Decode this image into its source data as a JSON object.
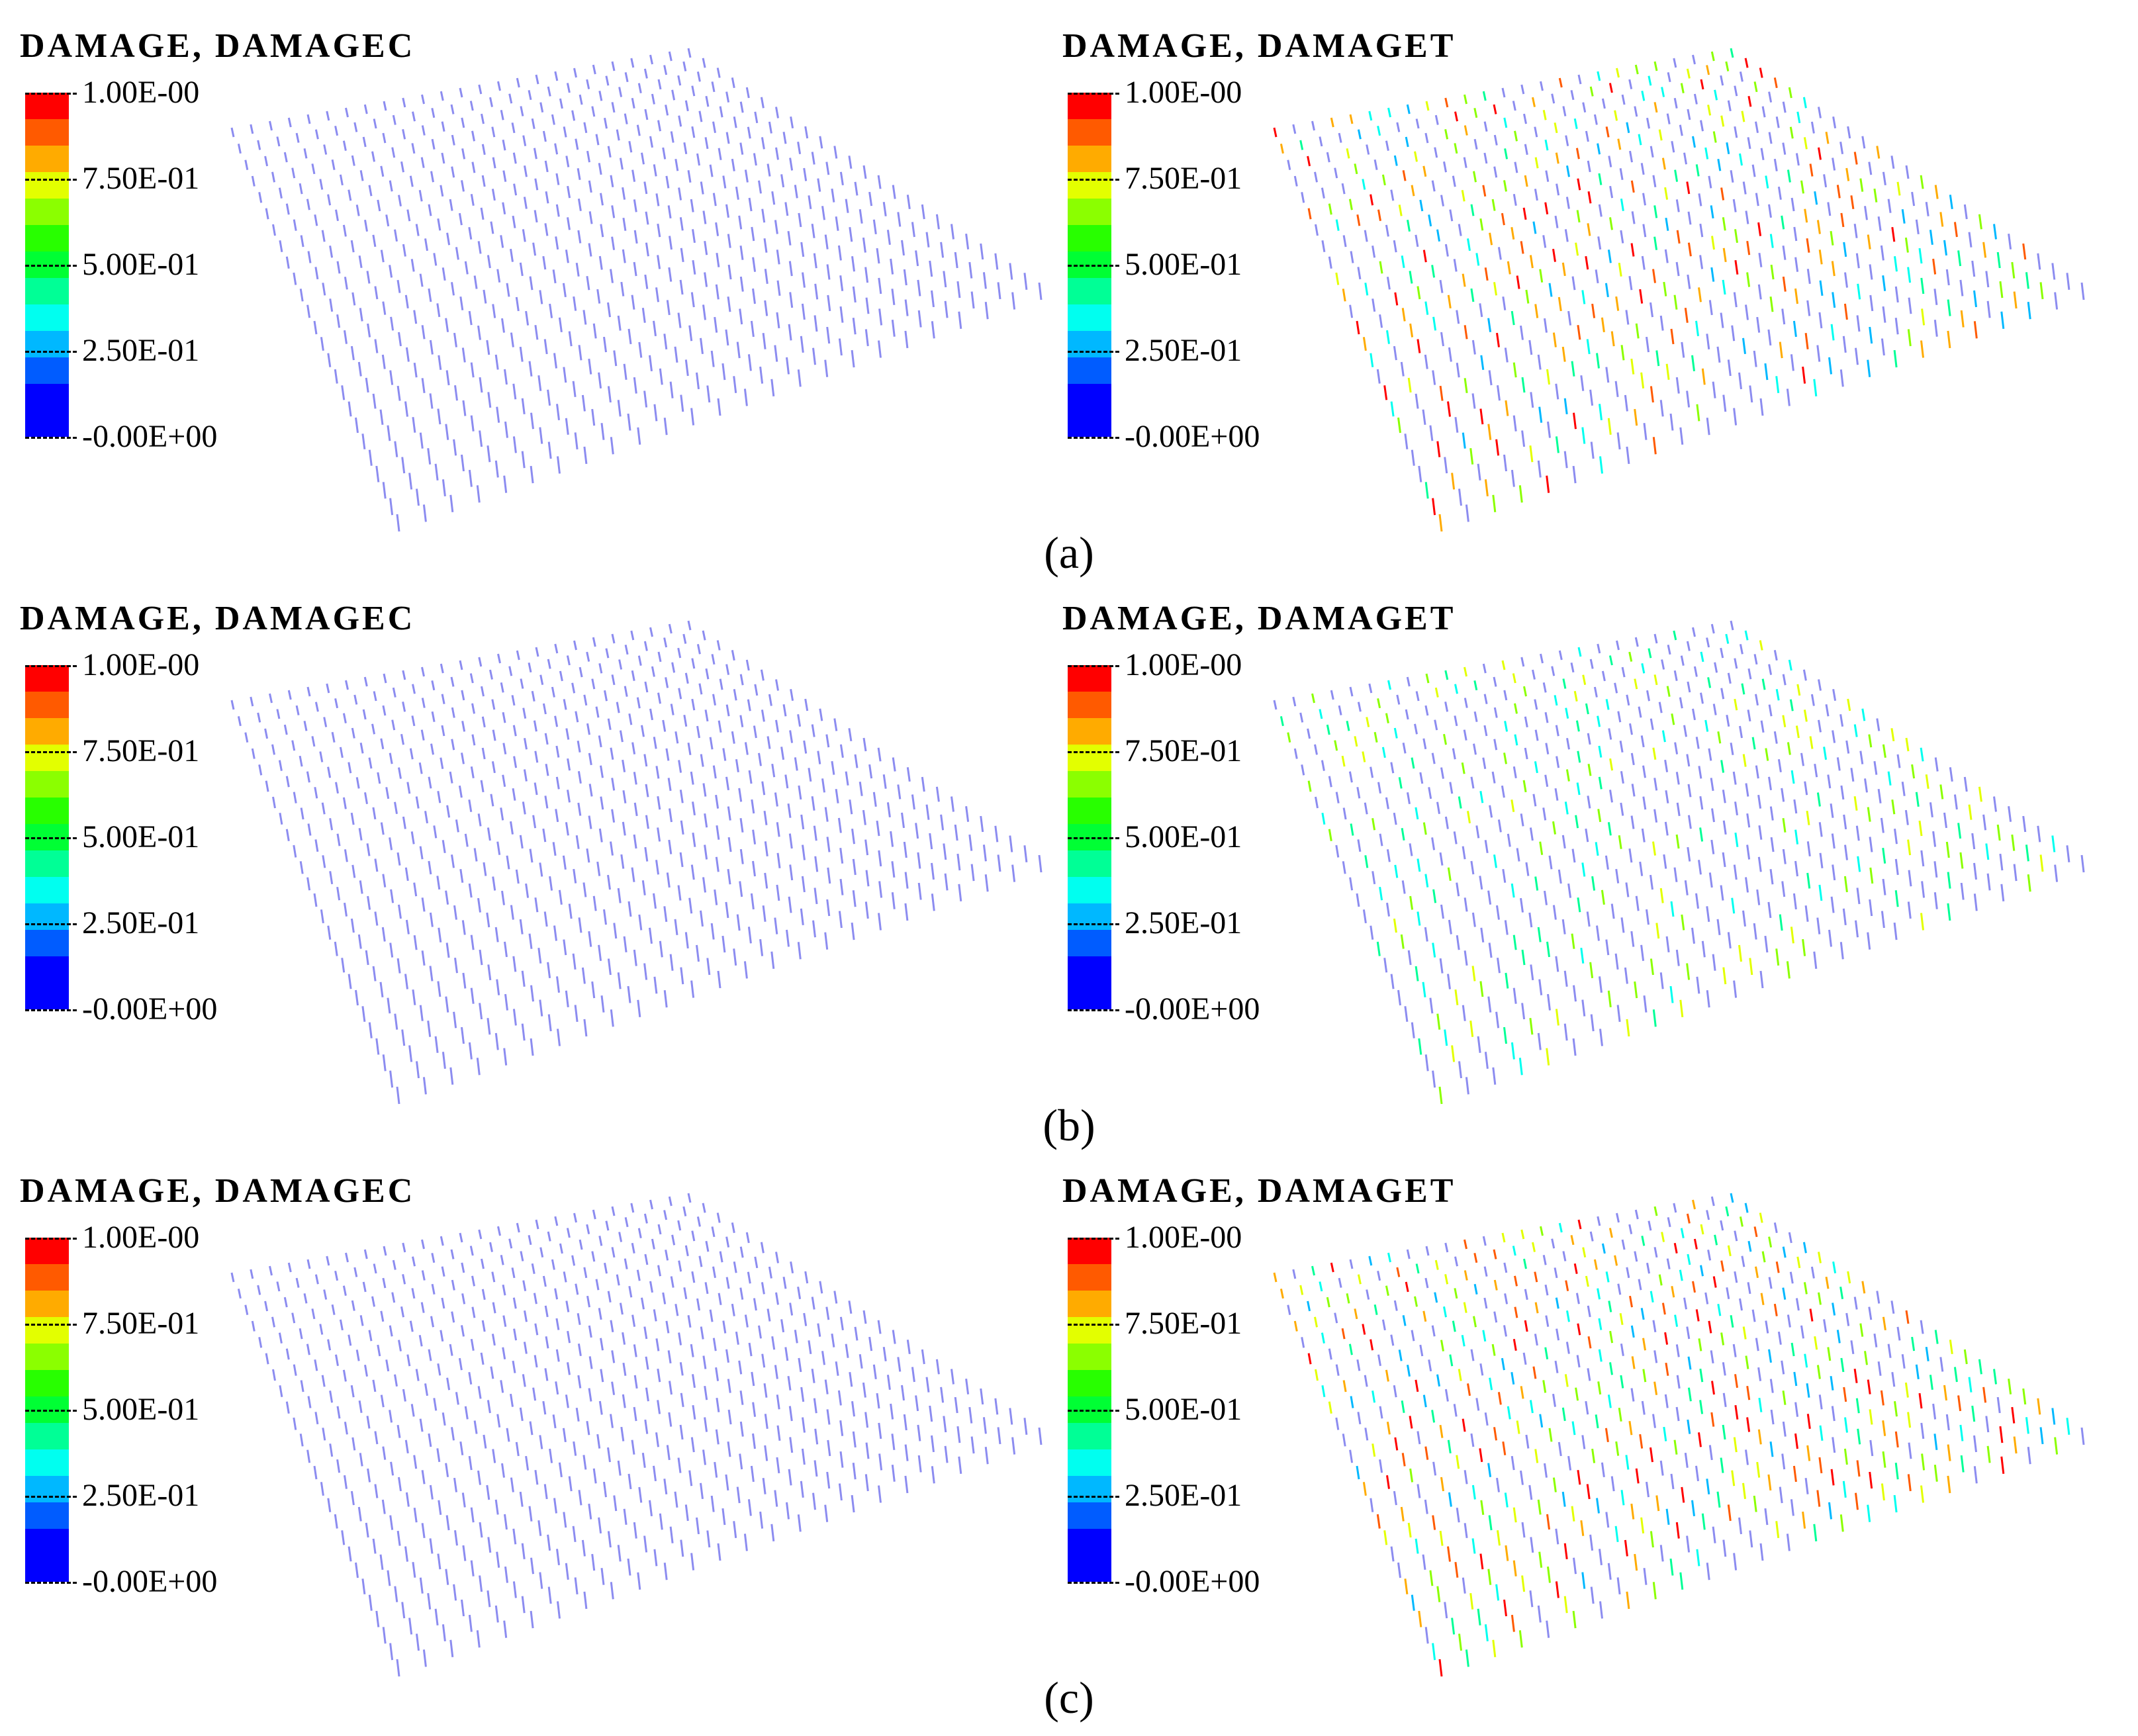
{
  "figure": {
    "rows": [
      {
        "caption": "(a)",
        "left": {
          "title": "DAMAGE, DAMAGEC",
          "variant": "compression"
        },
        "right": {
          "title": "DAMAGE, DAMAGET",
          "variant": "tension_a"
        }
      },
      {
        "caption": "(b)",
        "left": {
          "title": "DAMAGE, DAMAGEC",
          "variant": "compression"
        },
        "right": {
          "title": "DAMAGE, DAMAGET",
          "variant": "tension_b"
        }
      },
      {
        "caption": "(c)",
        "left": {
          "title": "DAMAGE, DAMAGEC",
          "variant": "compression"
        },
        "right": {
          "title": "DAMAGE, DAMAGET",
          "variant": "tension_c"
        }
      }
    ],
    "legend": {
      "tick_labels": [
        "1.00E-00",
        "7.50E-01",
        "5.00E-01",
        "2.50E-01",
        "-0.00E+00"
      ],
      "colors": [
        "#ff0000",
        "#ff5a00",
        "#ffab00",
        "#e3ff00",
        "#8bff00",
        "#28ff00",
        "#00ff34",
        "#00ff96",
        "#00fff0",
        "#00b8ff",
        "#005cff",
        "#0000ff",
        "#0000ff"
      ]
    },
    "mesh_color": "#8c8cf0"
  }
}
